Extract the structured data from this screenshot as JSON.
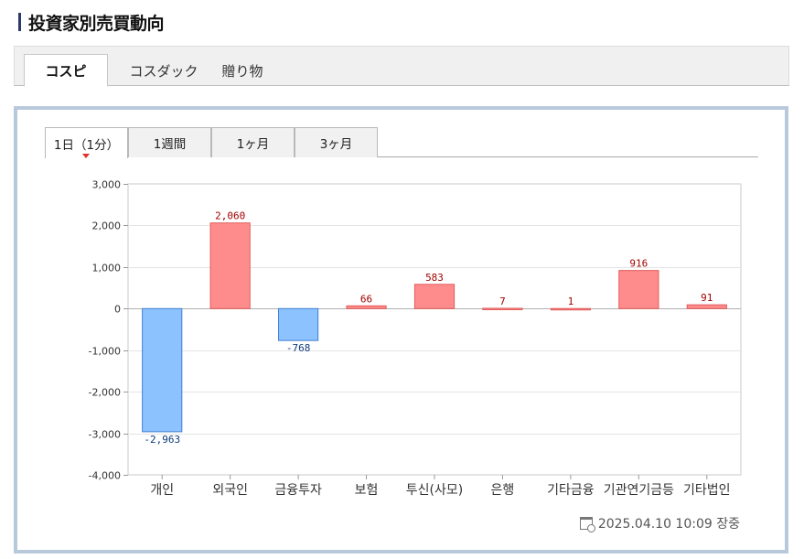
{
  "page": {
    "title": "投資家別売買動向",
    "market_tabs": [
      {
        "label": "コスピ",
        "active": true
      },
      {
        "label": "コスダック",
        "active": false
      },
      {
        "label": "贈り物",
        "active": false
      }
    ],
    "period_tabs": [
      {
        "label": "1日（1分）",
        "active": true
      },
      {
        "label": "1週間",
        "active": false
      },
      {
        "label": "1ヶ月",
        "active": false
      },
      {
        "label": "3ヶ月",
        "active": false
      }
    ],
    "timestamp": "2025.04.10 10:09 장중"
  },
  "colors": {
    "positive_fill": "#ff8c8c",
    "positive_stroke": "#e05a5a",
    "negative_fill": "#8cc3ff",
    "negative_stroke": "#3f7fd0",
    "positive_label": "#a30000",
    "negative_label": "#0b3a7a",
    "panel_border": "#b9c9dc"
  },
  "icons": {
    "timestamp_icon": "calendar-clock-icon"
  },
  "chart_data": {
    "type": "bar",
    "title": "",
    "xlabel": "",
    "ylabel": "",
    "categories": [
      "개인",
      "외국인",
      "금융투자",
      "보험",
      "투신(사모)",
      "은행",
      "기타금융",
      "기관연기금등",
      "기타법인"
    ],
    "values": [
      -2963,
      2060,
      -768,
      66,
      583,
      7,
      1,
      916,
      91
    ],
    "data_labels": [
      "-2,963",
      "2,060",
      "-768",
      "66",
      "583",
      "7",
      "1",
      "916",
      "91"
    ],
    "ylim": [
      -4000,
      3000
    ],
    "yticks": [
      3000,
      2000,
      1000,
      0,
      -1000,
      -2000,
      -3000,
      -4000
    ],
    "ytick_labels": [
      "3,000",
      "2,000",
      "1,000",
      "0",
      "-1,000",
      "-2,000",
      "-3,000",
      "-4,000"
    ],
    "grid": true,
    "legend": "none"
  }
}
